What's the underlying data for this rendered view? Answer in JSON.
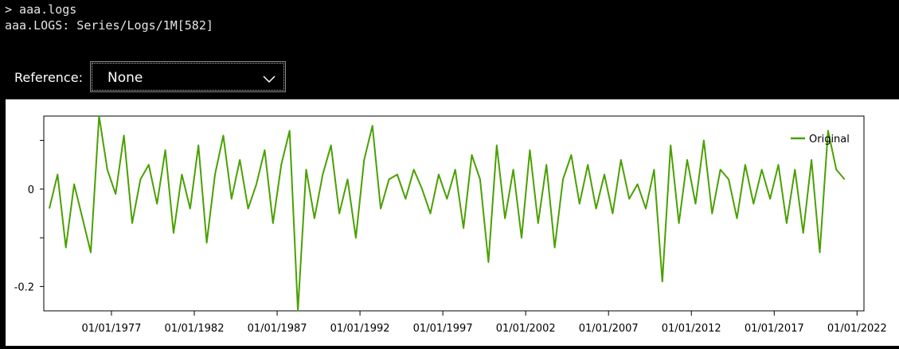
{
  "console": {
    "line1": "> aaa.logs",
    "line2": "aaa.LOGS: Series/Logs/1M[582]"
  },
  "reference": {
    "label": "Reference:",
    "selected": "None",
    "chevron_icon": "chevron-down-icon"
  },
  "chart_data": {
    "type": "line",
    "series": [
      {
        "name": "Original",
        "color": "#4aa000",
        "x": [
          "1973-04",
          "1973-10",
          "1974-04",
          "1974-10",
          "1975-04",
          "1975-10",
          "1976-04",
          "1976-10",
          "1977-04",
          "1977-10",
          "1978-04",
          "1978-10",
          "1979-04",
          "1979-10",
          "1980-04",
          "1980-10",
          "1981-04",
          "1981-10",
          "1982-04",
          "1982-10",
          "1983-04",
          "1983-10",
          "1984-04",
          "1984-10",
          "1985-04",
          "1985-10",
          "1986-04",
          "1986-10",
          "1987-04",
          "1987-10",
          "1988-04",
          "1988-10",
          "1989-04",
          "1989-10",
          "1990-04",
          "1990-10",
          "1991-04",
          "1991-10",
          "1992-04",
          "1992-10",
          "1993-04",
          "1993-10",
          "1994-04",
          "1994-10",
          "1995-04",
          "1995-10",
          "1996-04",
          "1996-10",
          "1997-04",
          "1997-10",
          "1998-04",
          "1998-10",
          "1999-04",
          "1999-10",
          "2000-04",
          "2000-10",
          "2001-04",
          "2001-10",
          "2002-04",
          "2002-10",
          "2003-04",
          "2003-10",
          "2004-04",
          "2004-10",
          "2005-04",
          "2005-10",
          "2006-04",
          "2006-10",
          "2007-04",
          "2007-10",
          "2008-04",
          "2008-10",
          "2009-04",
          "2009-10",
          "2010-04",
          "2010-10",
          "2011-04",
          "2011-10",
          "2012-04",
          "2012-10",
          "2013-04",
          "2013-10",
          "2014-04",
          "2014-10",
          "2015-04",
          "2015-10",
          "2016-04",
          "2016-10",
          "2017-04",
          "2017-10",
          "2018-04",
          "2018-10",
          "2019-04",
          "2019-10",
          "2020-04",
          "2020-10",
          "2021-04"
        ],
        "values": [
          -0.04,
          0.03,
          -0.12,
          0.01,
          -0.06,
          -0.13,
          0.15,
          0.04,
          -0.01,
          0.11,
          -0.07,
          0.02,
          0.05,
          -0.03,
          0.08,
          -0.09,
          0.03,
          -0.04,
          0.09,
          -0.11,
          0.03,
          0.11,
          -0.02,
          0.06,
          -0.04,
          0.01,
          0.08,
          -0.07,
          0.05,
          0.12,
          -0.25,
          0.04,
          -0.06,
          0.03,
          0.09,
          -0.05,
          0.02,
          -0.1,
          0.06,
          0.13,
          -0.04,
          0.02,
          0.03,
          -0.02,
          0.04,
          0.0,
          -0.05,
          0.03,
          -0.02,
          0.04,
          -0.08,
          0.07,
          0.02,
          -0.15,
          0.09,
          -0.06,
          0.04,
          -0.1,
          0.08,
          -0.07,
          0.05,
          -0.12,
          0.02,
          0.07,
          -0.03,
          0.05,
          -0.04,
          0.03,
          -0.05,
          0.06,
          -0.02,
          0.01,
          -0.04,
          0.04,
          -0.19,
          0.09,
          -0.07,
          0.06,
          -0.03,
          0.1,
          -0.05,
          0.04,
          0.02,
          -0.06,
          0.05,
          -0.03,
          0.04,
          -0.02,
          0.05,
          -0.07,
          0.04,
          -0.09,
          0.06,
          -0.13,
          0.12,
          0.04,
          0.02
        ]
      }
    ],
    "yticks": [
      "0",
      "-0.2"
    ],
    "ytick_values": [
      0,
      -0.2
    ],
    "xticks": [
      "01/01/1977",
      "01/01/1982",
      "01/01/1987",
      "01/01/1992",
      "01/01/1997",
      "01/01/2002",
      "01/01/2007",
      "01/01/2012",
      "01/01/2017",
      "01/01/2022"
    ],
    "xtick_dates": [
      "1977-01",
      "1982-01",
      "1987-01",
      "1992-01",
      "1997-01",
      "2002-01",
      "2007-01",
      "2012-01",
      "2017-01",
      "2022-01"
    ],
    "xlim": [
      "1972-12",
      "2022-06"
    ],
    "ylim": [
      -0.25,
      0.15
    ],
    "legend_position": "top-right",
    "grid": false
  }
}
